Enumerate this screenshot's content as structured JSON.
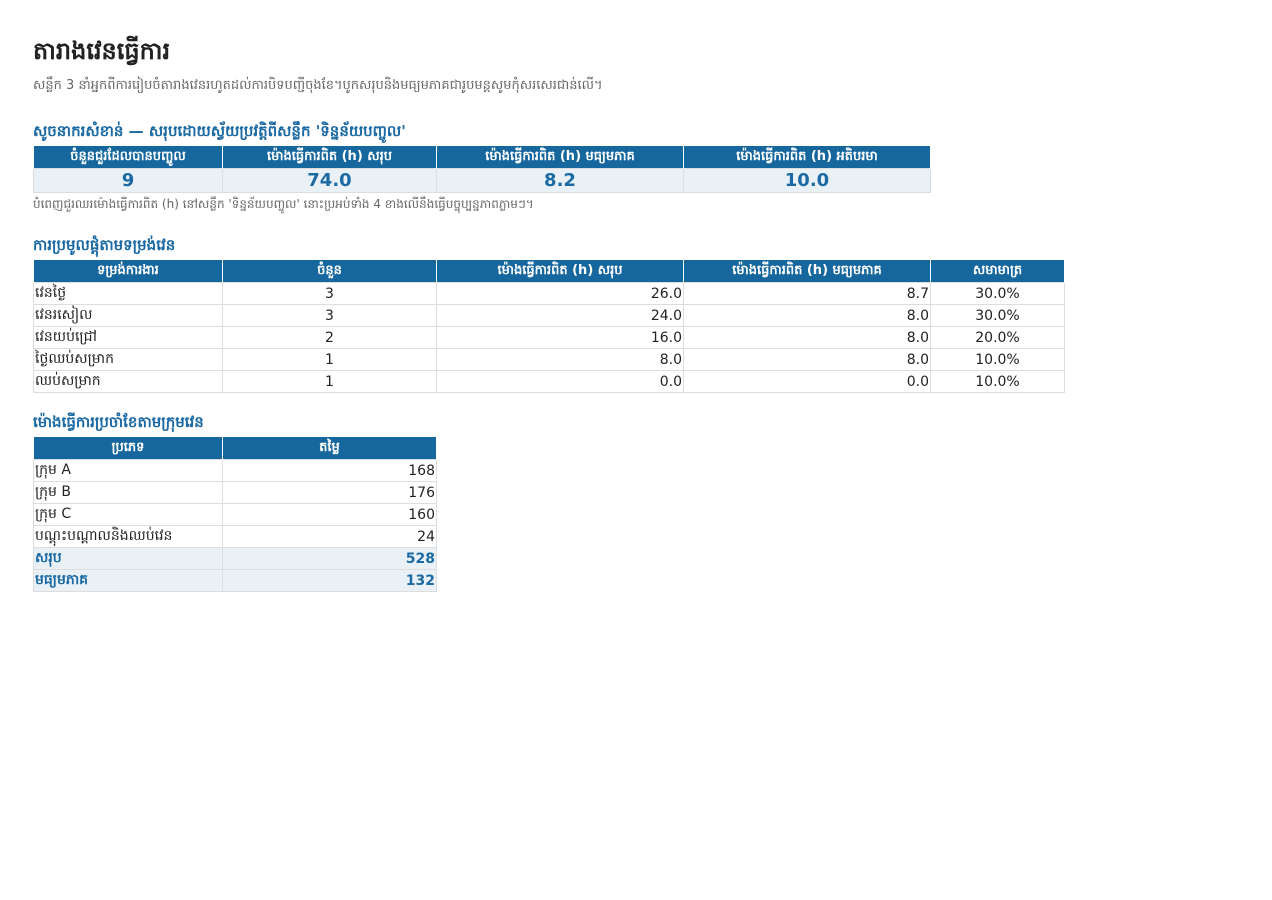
{
  "header": {
    "title": "តារាងវេនធ្វើការ",
    "subtitle": "សន្លឹក 3 នាំអ្នកពីការរៀបចំតារាងវេនរហូតដល់ការបិទបញ្ជីចុងខែ។បូកសរុបនិងមធ្យមភាគជារូបមន្តសូមកុំសរសេរជាន់លើ។"
  },
  "kpi": {
    "title": "សូចនាករសំខាន់ — សរុបដោយស្វ័យប្រវត្តិពីសន្លឹក 'ទិន្នន័យបញ្ចូល'",
    "columns": [
      "ចំនួនជួរដែលបានបញ្ចូល",
      "ម៉ោងធ្វើការពិត (h) សរុប",
      "ម៉ោងធ្វើការពិត (h) មធ្យមភាគ",
      "ម៉ោងធ្វើការពិត (h) អតិបរមា"
    ],
    "values": [
      "9",
      "74.0",
      "8.2",
      "10.0"
    ],
    "note": "បំពេញជួរឈរម៉ោងធ្វើការពិត (h) នៅសន្លឹក 'ទិន្នន័យបញ្ចូល' នោះប្រអប់ទាំង 4 ខាងលើនឹងធ្វើបច្ចុប្បន្នភាពភ្លាមៗ។"
  },
  "by_shift": {
    "title": "ការប្រមូលផ្តុំតាមទម្រង់វេន",
    "columns": [
      "ទម្រង់ការងារ",
      "ចំនួន",
      "ម៉ោងធ្វើការពិត (h) សរុប",
      "ម៉ោងធ្វើការពិត (h) មធ្យមភាគ",
      "សមាមាត្រ"
    ],
    "rows": [
      [
        "វេនថ្ងៃ",
        "3",
        "26.0",
        "8.7",
        "30.0%"
      ],
      [
        "វេនរសៀល",
        "3",
        "24.0",
        "8.0",
        "30.0%"
      ],
      [
        "វេនយប់ជ្រៅ",
        "2",
        "16.0",
        "8.0",
        "20.0%"
      ],
      [
        "ថ្ងៃឈប់សម្រាក",
        "1",
        "8.0",
        "8.0",
        "10.0%"
      ],
      [
        "ឈប់សម្រាក",
        "1",
        "0.0",
        "0.0",
        "10.0%"
      ]
    ]
  },
  "monthly": {
    "title": "ម៉ោងធ្វើការប្រចាំខែតាមក្រុមវេន",
    "columns": [
      "ប្រភេទ",
      "តម្លៃ"
    ],
    "rows": [
      [
        "ក្រុម A",
        "168"
      ],
      [
        "ក្រុម B",
        "176"
      ],
      [
        "ក្រុម C",
        "160"
      ],
      [
        "បណ្តុះបណ្តាលនិងឈប់វេន",
        "24"
      ]
    ],
    "totals": [
      [
        "សរុប",
        "528"
      ],
      [
        "មធ្យមភាគ",
        "132"
      ]
    ]
  }
}
